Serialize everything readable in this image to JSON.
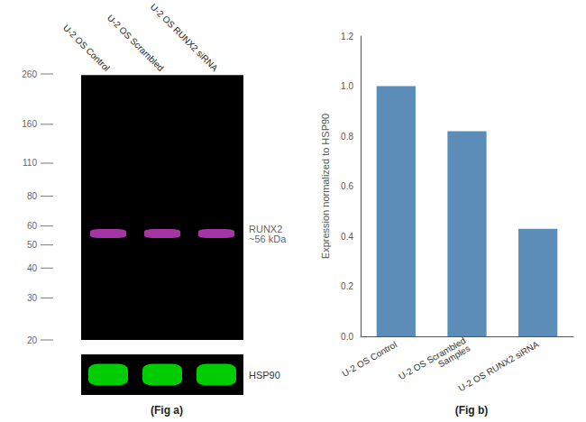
{
  "chart_data": [
    {
      "type": "blot",
      "title": "(Fig a)",
      "categories": [
        "U-2 OS Control",
        "U-2 OS Scrambled",
        "U-2 OS RUNX2 siRNA"
      ],
      "log": "y",
      "ylim": [
        20,
        260
      ],
      "yticks": [
        260,
        160,
        110,
        80,
        60,
        50,
        40,
        30,
        20
      ],
      "series": [
        {
          "name": "RUNX2\n~56 kDa",
          "color": "#cc44cc",
          "values": [
            56,
            56,
            56
          ]
        }
      ]
    },
    {
      "type": "blot",
      "series": [
        {
          "name": "HSP90",
          "color": "#00ff00"
        }
      ]
    },
    {
      "type": "bar",
      "title": "(Fig b)",
      "categories": [
        "U-2 OS Control",
        "U-2 OS Scrambled\nSamples",
        "U-2 OS RUNX2 siRNA"
      ],
      "values": [
        1.0,
        0.82,
        0.43
      ],
      "color": "#5b8db8",
      "ylabel": "Expression normalized to HSP90",
      "ylim": [
        0,
        1.2
      ],
      "yticks": [
        {
          "value": 0,
          "label": "0.0"
        },
        0.2,
        0.4,
        0.6,
        0.8,
        {
          "value": 1.0,
          "label": "1.0"
        },
        1.2
      ],
      "grid": false
    }
  ]
}
